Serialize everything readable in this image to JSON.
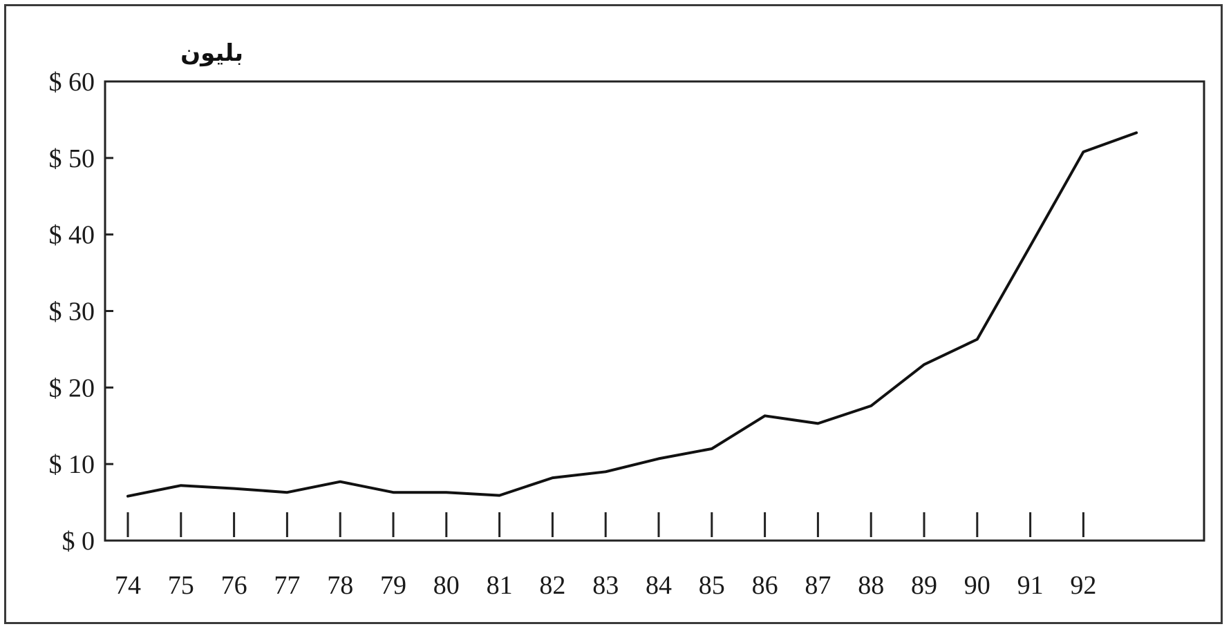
{
  "chart_data": {
    "type": "line",
    "unit_label": "بليون",
    "x": [
      "74",
      "75",
      "76",
      "77",
      "78",
      "79",
      "80",
      "81",
      "82",
      "83",
      "84",
      "85",
      "86",
      "87",
      "88",
      "89",
      "90",
      "91",
      "92",
      "93"
    ],
    "x_tick_labels": [
      "74",
      "75",
      "76",
      "77",
      "78",
      "79",
      "80",
      "81",
      "82",
      "83",
      "84",
      "85",
      "86",
      "87",
      "88",
      "89",
      "90",
      "91",
      "92"
    ],
    "series": [
      {
        "values": [
          5.8,
          7.2,
          6.8,
          6.3,
          7.7,
          6.3,
          6.3,
          5.9,
          8.2,
          9.0,
          10.7,
          12.0,
          16.3,
          15.3,
          17.6,
          23.0,
          26.3,
          38.5,
          50.8,
          53.3
        ]
      }
    ],
    "y_tick_labels": [
      "$ 0",
      "$ 10",
      "$ 20",
      "$ 30",
      "$ 40",
      "$ 50",
      "$ 60"
    ],
    "y_ticks": [
      0,
      10,
      20,
      30,
      40,
      50,
      60
    ],
    "ylim": [
      0,
      60
    ],
    "grid": false,
    "line_color": "#111111"
  }
}
